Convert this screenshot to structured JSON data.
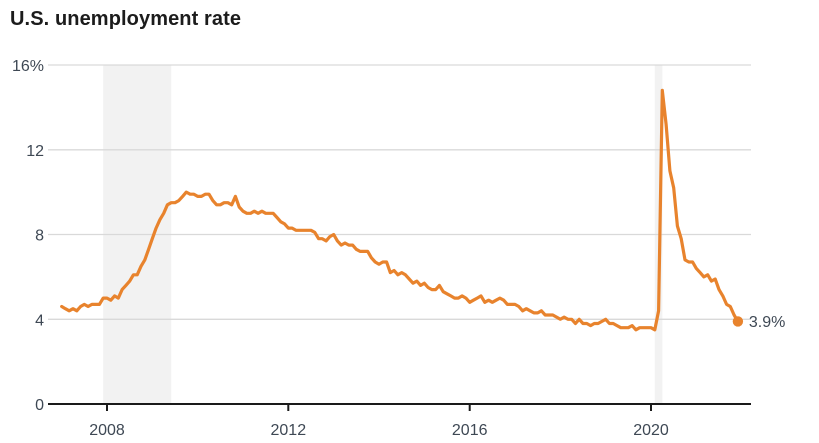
{
  "header": {
    "title": "U.S. unemployment rate"
  },
  "colors": {
    "line": "#e8832d",
    "dot": "#e8832d",
    "gridline": "#d9d9d9",
    "axis": "#1a1a1a",
    "tick_text": "#3e4854",
    "title_text": "#1c1c1c",
    "recession_band": "#f2f2f2",
    "background": "#ffffff"
  },
  "chart_data": {
    "type": "line",
    "title": "U.S. unemployment rate",
    "unit": "percent",
    "x_start_year": 2007,
    "x_start_month": 1,
    "x_interval": "monthly",
    "ylim": [
      0,
      16
    ],
    "grid": "horizontal",
    "legend": "none",
    "yticks": [
      {
        "value": 16,
        "label": "16%"
      },
      {
        "value": 12,
        "label": "12"
      },
      {
        "value": 8,
        "label": "8"
      },
      {
        "value": 4,
        "label": "4"
      },
      {
        "value": 0,
        "label": "0"
      }
    ],
    "xticks": [
      {
        "value": 2008,
        "label": "2008"
      },
      {
        "value": 2012,
        "label": "2012"
      },
      {
        "value": 2016,
        "label": "2016"
      },
      {
        "value": 2020,
        "label": "2020"
      }
    ],
    "recession_bands": [
      {
        "start_year_frac": 2007.9167,
        "end_year_frac": 2009.4167
      },
      {
        "start_year_frac": 2020.0833,
        "end_year_frac": 2020.25
      }
    ],
    "series": [
      {
        "name": "U.S. unemployment rate",
        "color": "#e8832d",
        "values": [
          4.6,
          4.5,
          4.4,
          4.5,
          4.4,
          4.6,
          4.7,
          4.6,
          4.7,
          4.7,
          4.7,
          5.0,
          5.0,
          4.9,
          5.1,
          5.0,
          5.4,
          5.6,
          5.8,
          6.1,
          6.1,
          6.5,
          6.8,
          7.3,
          7.8,
          8.3,
          8.7,
          9.0,
          9.4,
          9.5,
          9.5,
          9.6,
          9.8,
          10.0,
          9.9,
          9.9,
          9.8,
          9.8,
          9.9,
          9.9,
          9.6,
          9.4,
          9.4,
          9.5,
          9.5,
          9.4,
          9.8,
          9.3,
          9.1,
          9.0,
          9.0,
          9.1,
          9.0,
          9.1,
          9.0,
          9.0,
          9.0,
          8.8,
          8.6,
          8.5,
          8.3,
          8.3,
          8.2,
          8.2,
          8.2,
          8.2,
          8.2,
          8.1,
          7.8,
          7.8,
          7.7,
          7.9,
          8.0,
          7.7,
          7.5,
          7.6,
          7.5,
          7.5,
          7.3,
          7.2,
          7.2,
          7.2,
          6.9,
          6.7,
          6.6,
          6.7,
          6.7,
          6.2,
          6.3,
          6.1,
          6.2,
          6.1,
          5.9,
          5.7,
          5.8,
          5.6,
          5.7,
          5.5,
          5.4,
          5.4,
          5.6,
          5.3,
          5.2,
          5.1,
          5.0,
          5.0,
          5.1,
          5.0,
          4.8,
          4.9,
          5.0,
          5.1,
          4.8,
          4.9,
          4.8,
          4.9,
          5.0,
          4.9,
          4.7,
          4.7,
          4.7,
          4.6,
          4.4,
          4.5,
          4.4,
          4.3,
          4.3,
          4.4,
          4.2,
          4.2,
          4.2,
          4.1,
          4.0,
          4.1,
          4.0,
          4.0,
          3.8,
          4.0,
          3.8,
          3.8,
          3.7,
          3.8,
          3.8,
          3.9,
          4.0,
          3.8,
          3.8,
          3.7,
          3.6,
          3.6,
          3.6,
          3.7,
          3.5,
          3.6,
          3.6,
          3.6,
          3.6,
          3.5,
          4.4,
          14.8,
          13.2,
          11.0,
          10.2,
          8.4,
          7.8,
          6.8,
          6.7,
          6.7,
          6.4,
          6.2,
          6.0,
          6.1,
          5.8,
          5.9,
          5.4,
          5.1,
          4.7,
          4.6,
          4.2,
          3.9
        ]
      }
    ],
    "end_label": "3.9%"
  }
}
